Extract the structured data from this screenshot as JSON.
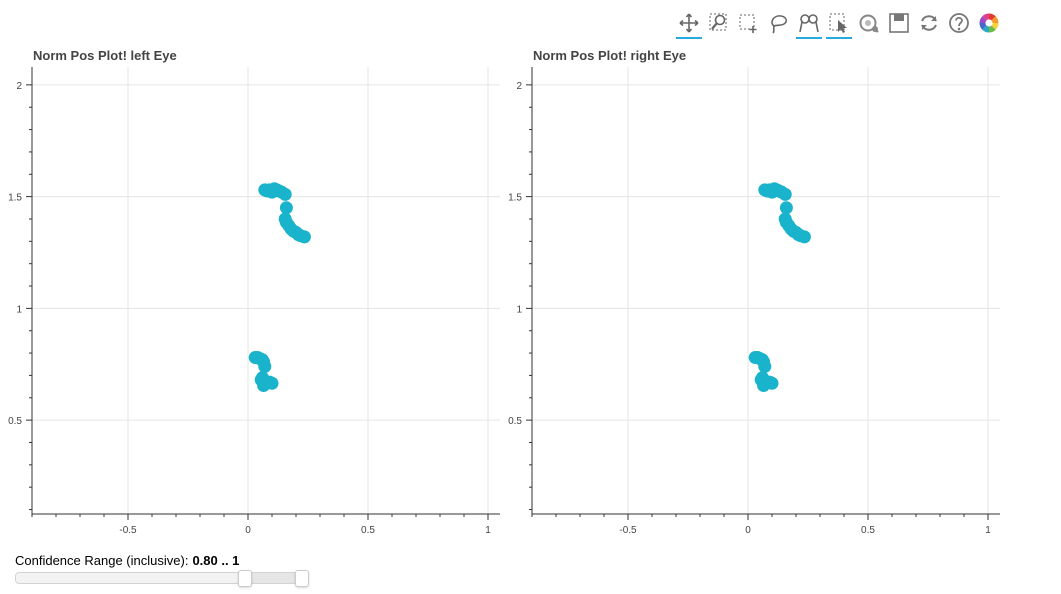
{
  "toolbar": {
    "tools": [
      {
        "name": "pan-tool",
        "icon": "pan-icon",
        "active": true
      },
      {
        "name": "box-zoom-tool",
        "icon": "box-zoom-icon",
        "active": false
      },
      {
        "name": "box-select-tool",
        "icon": "box-select-icon",
        "active": false
      },
      {
        "name": "lasso-select-tool",
        "icon": "lasso-select-icon",
        "active": false
      },
      {
        "name": "wheel-zoom-tool",
        "icon": "wheel-zoom-icon",
        "active": true
      },
      {
        "name": "tap-tool",
        "icon": "tap-icon",
        "active": true
      },
      {
        "name": "zoom-out-tool",
        "icon": "zoom-out-icon",
        "active": false
      },
      {
        "name": "save-tool",
        "icon": "save-icon",
        "active": false
      },
      {
        "name": "reset-tool",
        "icon": "reset-icon",
        "active": false
      },
      {
        "name": "help-tool",
        "icon": "help-icon",
        "active": false
      },
      {
        "name": "bokeh-logo",
        "icon": "bokeh-logo-icon",
        "active": false
      }
    ],
    "accent_color": "#26aae1"
  },
  "chart_data": [
    {
      "type": "scatter",
      "title": "Norm Pos Plot! left Eye",
      "xlabel": "",
      "ylabel": "",
      "xlim": [
        -0.9,
        1.05
      ],
      "ylim": [
        0.08,
        2.08
      ],
      "xticks": [
        -0.5,
        0,
        0.5,
        1
      ],
      "xtick_labels": [
        "-0.5",
        "0",
        "0.5",
        "1"
      ],
      "yticks": [
        0.5,
        1,
        1.5,
        2
      ],
      "ytick_labels": [
        "0.5",
        "1",
        "1.5",
        "2"
      ],
      "grid": true,
      "marker_color": "#1ab3cc",
      "points": [
        [
          0.07,
          1.53
        ],
        [
          0.08,
          1.525
        ],
        [
          0.09,
          1.53
        ],
        [
          0.1,
          1.52
        ],
        [
          0.11,
          1.535
        ],
        [
          0.12,
          1.53
        ],
        [
          0.13,
          1.525
        ],
        [
          0.14,
          1.52
        ],
        [
          0.155,
          1.51
        ],
        [
          0.16,
          1.45
        ],
        [
          0.155,
          1.4
        ],
        [
          0.16,
          1.385
        ],
        [
          0.17,
          1.37
        ],
        [
          0.18,
          1.355
        ],
        [
          0.19,
          1.345
        ],
        [
          0.2,
          1.34
        ],
        [
          0.21,
          1.33
        ],
        [
          0.22,
          1.325
        ],
        [
          0.235,
          1.32
        ],
        [
          0.03,
          0.78
        ],
        [
          0.04,
          0.78
        ],
        [
          0.05,
          0.775
        ],
        [
          0.06,
          0.77
        ],
        [
          0.065,
          0.76
        ],
        [
          0.07,
          0.74
        ],
        [
          0.06,
          0.69
        ],
        [
          0.055,
          0.68
        ],
        [
          0.065,
          0.67
        ],
        [
          0.07,
          0.675
        ],
        [
          0.08,
          0.67
        ],
        [
          0.09,
          0.67
        ],
        [
          0.1,
          0.665
        ],
        [
          0.065,
          0.655
        ]
      ]
    },
    {
      "type": "scatter",
      "title": "Norm Pos Plot! right Eye",
      "xlabel": "",
      "ylabel": "",
      "xlim": [
        -0.9,
        1.05
      ],
      "ylim": [
        0.08,
        2.08
      ],
      "xticks": [
        -0.5,
        0,
        0.5,
        1
      ],
      "xtick_labels": [
        "-0.5",
        "0",
        "0.5",
        "1"
      ],
      "yticks": [
        0.5,
        1,
        1.5,
        2
      ],
      "ytick_labels": [
        "0.5",
        "1",
        "1.5",
        "2"
      ],
      "grid": true,
      "marker_color": "#1ab3cc",
      "points": [
        [
          0.07,
          1.53
        ],
        [
          0.08,
          1.525
        ],
        [
          0.09,
          1.53
        ],
        [
          0.1,
          1.52
        ],
        [
          0.11,
          1.535
        ],
        [
          0.12,
          1.53
        ],
        [
          0.13,
          1.525
        ],
        [
          0.14,
          1.52
        ],
        [
          0.155,
          1.51
        ],
        [
          0.16,
          1.45
        ],
        [
          0.155,
          1.4
        ],
        [
          0.16,
          1.385
        ],
        [
          0.17,
          1.37
        ],
        [
          0.18,
          1.355
        ],
        [
          0.19,
          1.345
        ],
        [
          0.2,
          1.34
        ],
        [
          0.21,
          1.33
        ],
        [
          0.22,
          1.325
        ],
        [
          0.235,
          1.32
        ],
        [
          0.03,
          0.78
        ],
        [
          0.04,
          0.78
        ],
        [
          0.05,
          0.775
        ],
        [
          0.06,
          0.77
        ],
        [
          0.065,
          0.76
        ],
        [
          0.07,
          0.74
        ],
        [
          0.06,
          0.69
        ],
        [
          0.055,
          0.68
        ],
        [
          0.065,
          0.67
        ],
        [
          0.07,
          0.675
        ],
        [
          0.08,
          0.67
        ],
        [
          0.09,
          0.67
        ],
        [
          0.1,
          0.665
        ],
        [
          0.065,
          0.655
        ]
      ]
    }
  ],
  "slider": {
    "title": "Confidence Range (inclusive):",
    "value_text": "0.80 .. 1",
    "start": 0,
    "end": 1,
    "range": [
      0.8,
      1
    ]
  }
}
